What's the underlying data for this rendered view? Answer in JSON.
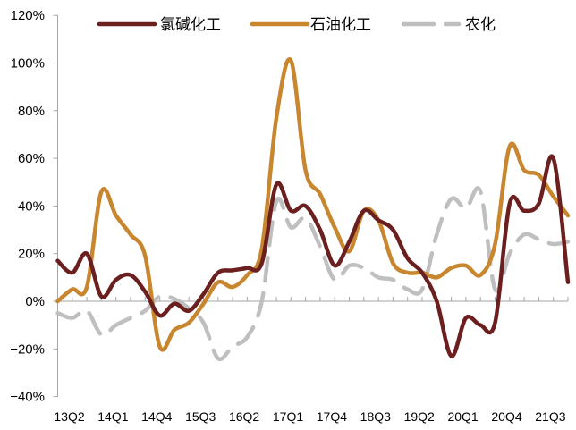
{
  "chart_data": {
    "type": "line",
    "title": "",
    "xlabel": "",
    "ylabel": "",
    "ylim": [
      -40,
      120
    ],
    "yticks": [
      "-40%",
      "-20%",
      "0%",
      "20%",
      "40%",
      "60%",
      "80%",
      "100%",
      "120%"
    ],
    "ytick_values": [
      -40,
      -20,
      0,
      20,
      40,
      60,
      80,
      100,
      120
    ],
    "grid": false,
    "legend_position": "top",
    "x": [
      "13Q2",
      "13Q3",
      "13Q4",
      "14Q1",
      "14Q2",
      "14Q3",
      "14Q4",
      "15Q1",
      "15Q2",
      "15Q3",
      "15Q4",
      "16Q1",
      "16Q2",
      "16Q3",
      "16Q4",
      "17Q1",
      "17Q2",
      "17Q3",
      "17Q4",
      "18Q1",
      "18Q2",
      "18Q3",
      "18Q4",
      "19Q1",
      "19Q2",
      "19Q3",
      "19Q4",
      "20Q1",
      "20Q2",
      "20Q3",
      "20Q4",
      "21Q1",
      "21Q2",
      "21Q3",
      "21Q4",
      "22Q1"
    ],
    "x_tick_labels": [
      "13Q2",
      "14Q1",
      "14Q4",
      "15Q3",
      "16Q2",
      "17Q1",
      "17Q4",
      "18Q3",
      "19Q2",
      "20Q1",
      "20Q4",
      "21Q3"
    ],
    "series": [
      {
        "name": "氯碱化工",
        "color": "#6b1f1f",
        "style": "solid",
        "values": [
          17,
          12,
          20,
          2,
          9,
          11,
          4,
          -6,
          -1,
          -4,
          3,
          12,
          13,
          14,
          16,
          49,
          38,
          40,
          30,
          15,
          25,
          38,
          34,
          30,
          18,
          12,
          0,
          -23,
          -7,
          -10,
          -9,
          41,
          38,
          41,
          60,
          8
        ]
      },
      {
        "name": "石油化工",
        "color": "#c8862f",
        "style": "solid",
        "values": [
          0,
          5,
          6,
          46,
          36,
          28,
          19,
          -19,
          -12,
          -9,
          -1,
          8,
          6,
          11,
          22,
          77,
          101,
          55,
          45,
          31,
          21,
          38,
          34,
          16,
          12,
          12,
          10,
          14,
          15,
          11,
          24,
          65,
          55,
          53,
          44,
          36
        ]
      },
      {
        "name": "农化",
        "color": "#bfbfbf",
        "style": "dashed",
        "values": [
          -5,
          -7,
          -4,
          -14,
          -10,
          -7,
          -4,
          2,
          1,
          -3,
          -9,
          -24,
          -19,
          -15,
          0,
          42,
          31,
          35,
          23,
          9,
          15,
          14,
          10,
          9,
          5,
          5,
          28,
          43,
          39,
          46,
          5,
          20,
          28,
          26,
          24,
          25
        ]
      }
    ]
  }
}
